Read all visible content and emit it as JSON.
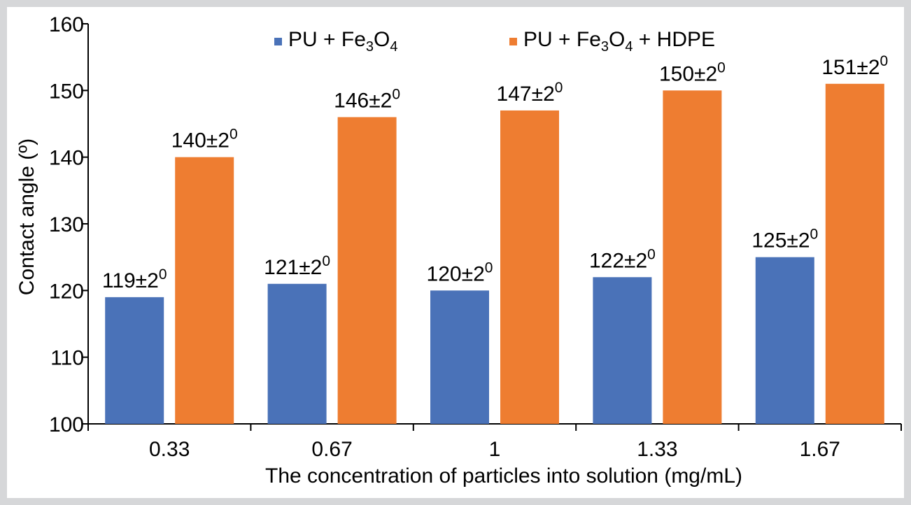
{
  "chart_data": {
    "type": "bar",
    "categories": [
      "0.33",
      "0.67",
      "1",
      "1.33",
      "1.67"
    ],
    "series": [
      {
        "name": "PU + Fe3O4",
        "legend_parts": [
          {
            "text": "PU + Fe"
          },
          {
            "text": "3",
            "sub": true
          },
          {
            "text": "O"
          },
          {
            "text": "4",
            "sub": true
          }
        ],
        "color": "#4a72b8",
        "values": [
          119,
          121,
          120,
          122,
          125
        ],
        "labels": [
          "119±2",
          "121±2",
          "120±2",
          "122±2",
          "125±2"
        ]
      },
      {
        "name": "PU + Fe3O4 + HDPE",
        "legend_parts": [
          {
            "text": "PU + Fe"
          },
          {
            "text": "3",
            "sub": true
          },
          {
            "text": "O"
          },
          {
            "text": "4",
            "sub": true
          },
          {
            "text": " + HDPE"
          }
        ],
        "color": "#ee7d31",
        "values": [
          140,
          146,
          147,
          150,
          151
        ],
        "labels": [
          "140±2",
          "146±2",
          "147±2",
          "150±2",
          "151±2"
        ]
      }
    ],
    "label_superscript": "0",
    "ylim": [
      100,
      160
    ],
    "yticks": [
      100,
      110,
      120,
      130,
      140,
      150,
      160
    ],
    "ylabel": "Contact angle (º)",
    "xlabel": "The concentration of particles into solution (mg/mL)",
    "legend_position": "top",
    "grid": false
  }
}
